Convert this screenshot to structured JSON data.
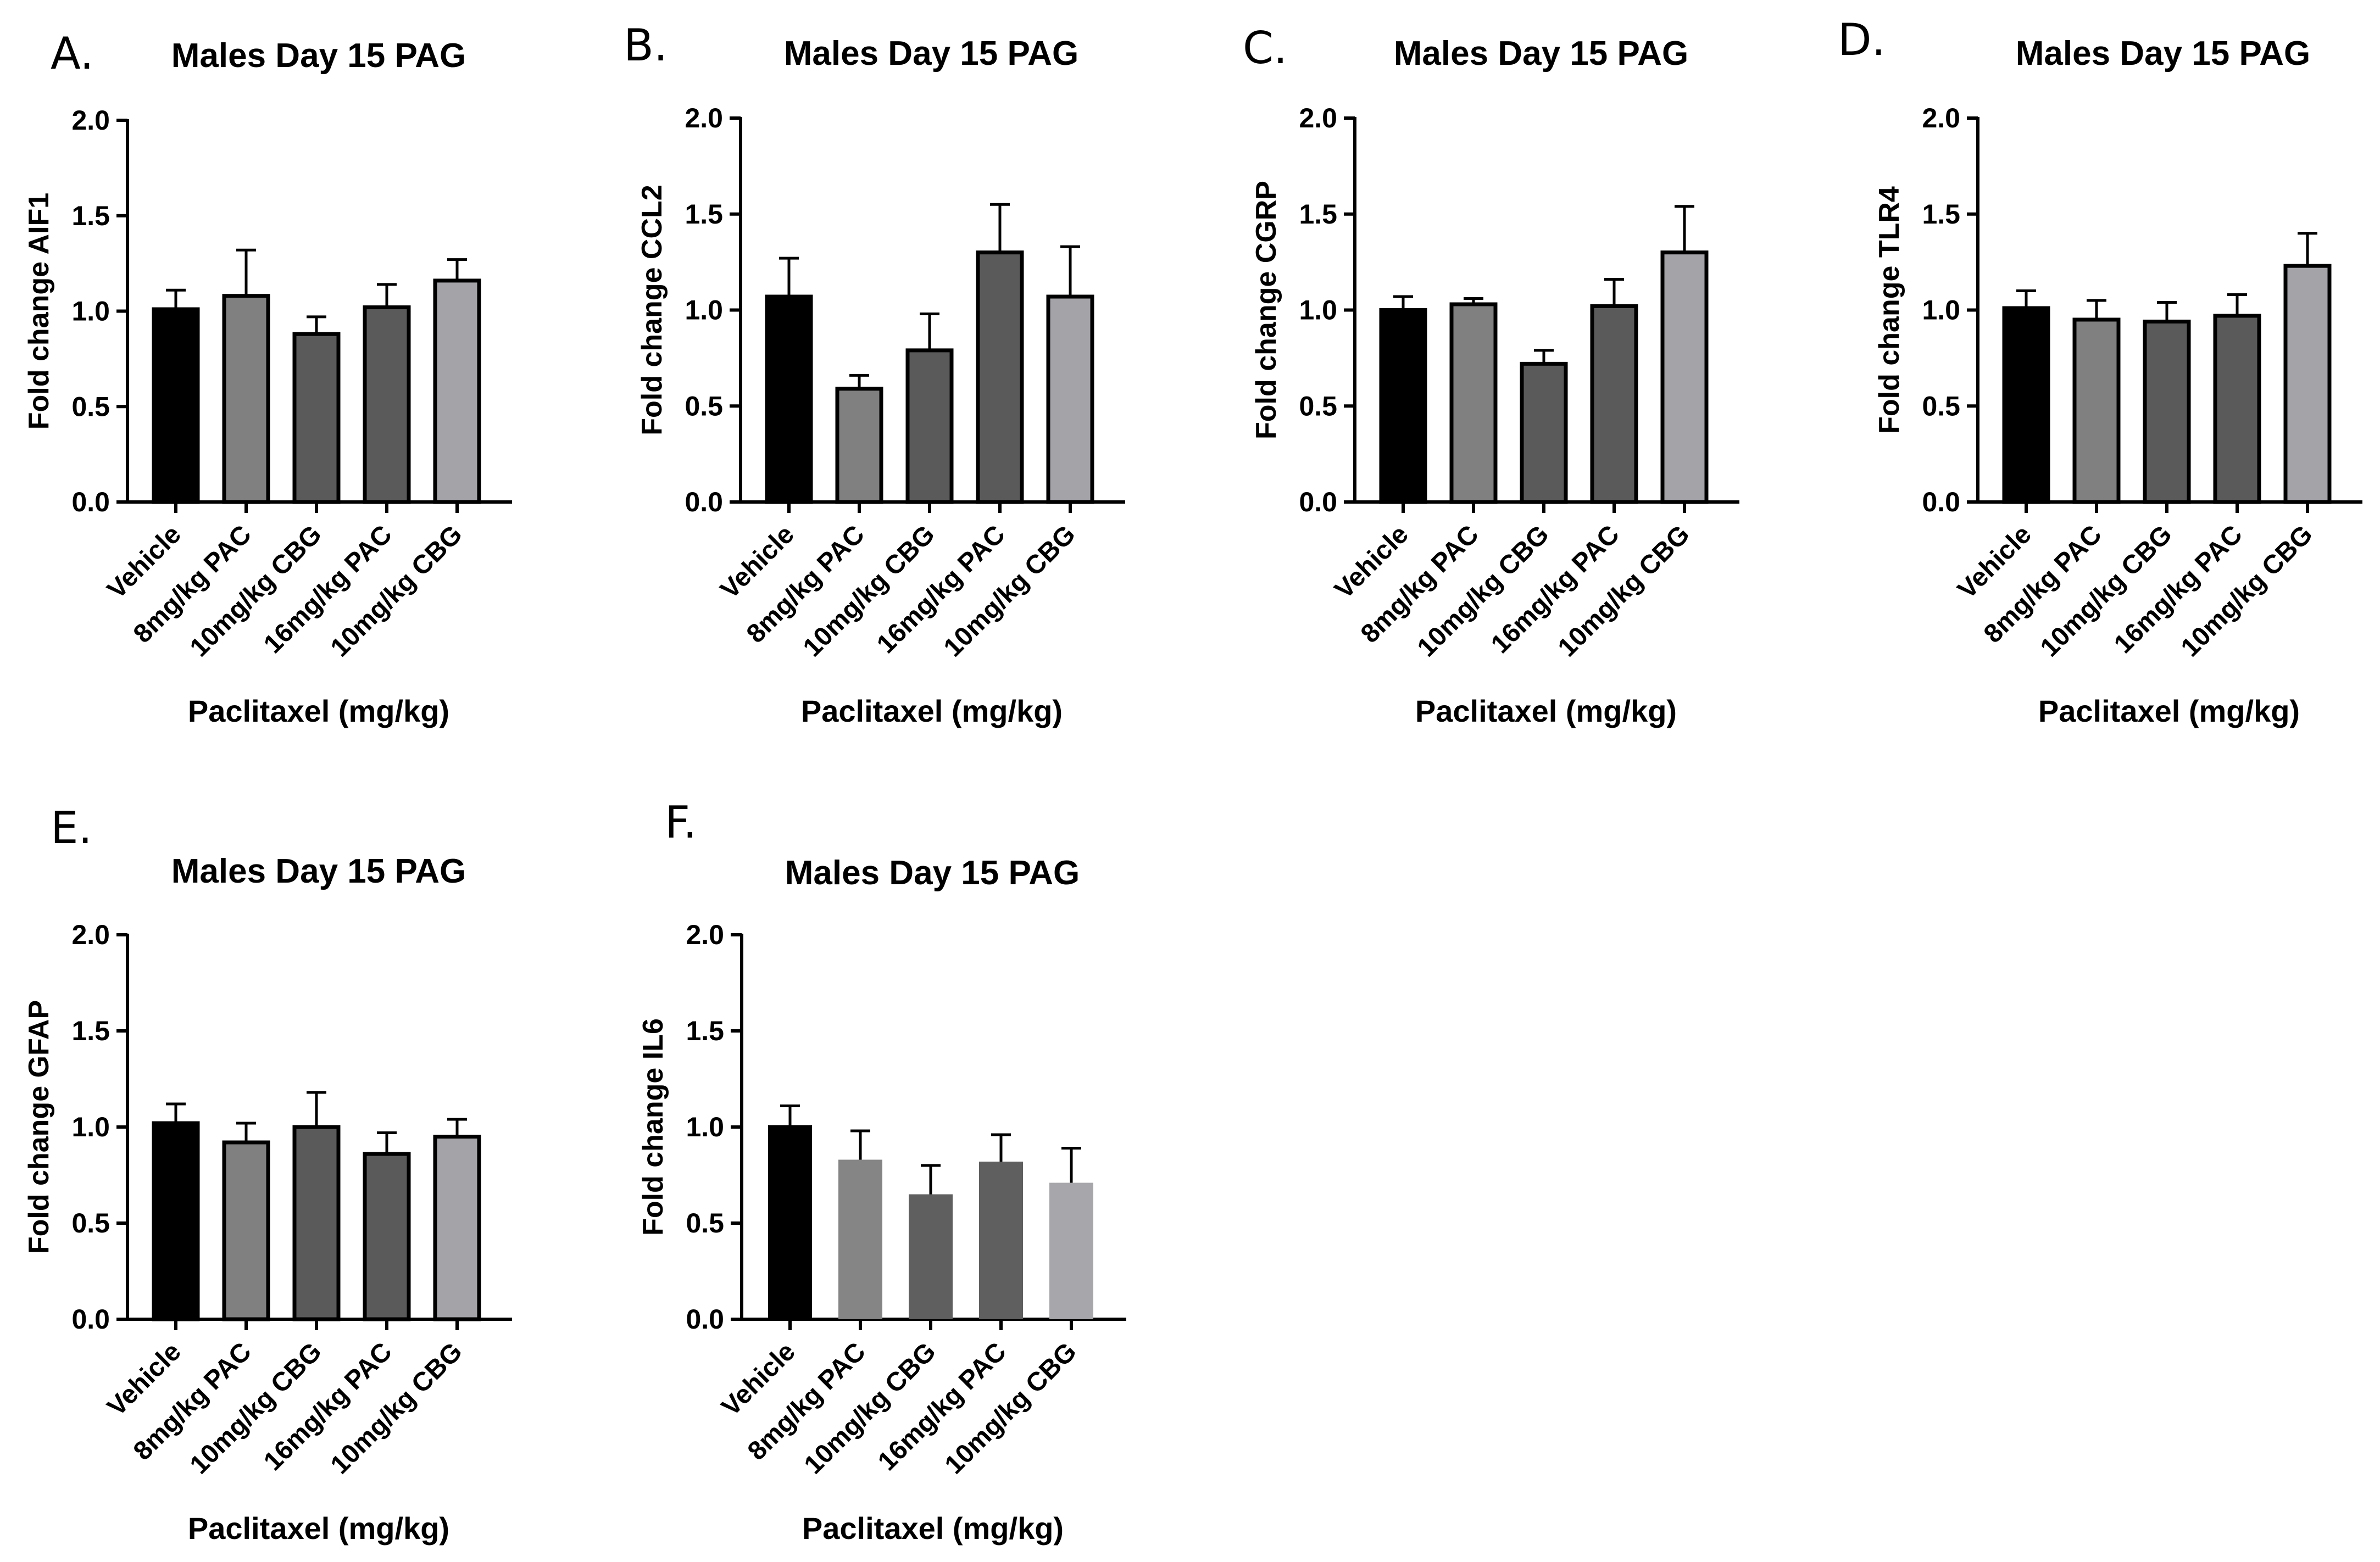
{
  "figure": {
    "panels": [
      {
        "letter": "A."
      },
      {
        "letter": "B."
      },
      {
        "letter": "C."
      },
      {
        "letter": "D."
      },
      {
        "letter": "E."
      },
      {
        "letter": "F."
      }
    ]
  },
  "chart_data": [
    {
      "type": "bar",
      "title": "Males Day 15 PAG",
      "xlabel": "Paclitaxel (mg/kg)",
      "ylabel": "Fold change AIF1",
      "categories": [
        "Vehicle",
        "8mg/kg PAC",
        "10mg/kg CBG",
        "16mg/kg PAC",
        "10mg/kg CBG"
      ],
      "values": [
        1.01,
        1.08,
        0.88,
        1.02,
        1.16
      ],
      "errors": [
        0.1,
        0.24,
        0.09,
        0.12,
        0.11
      ],
      "bar_colors": [
        "#000000",
        "#808080",
        "#5a5a5a",
        "#5a5a5a",
        "#a3a3a8"
      ],
      "bar_outline": true,
      "ylim": [
        0,
        2.0
      ],
      "yticks": [
        "0.0",
        "0.5",
        "1.0",
        "1.5",
        "2.0"
      ],
      "grid": false
    },
    {
      "type": "bar",
      "title": "Males Day 15 PAG",
      "xlabel": "Paclitaxel (mg/kg)",
      "ylabel": "Fold change CCL2",
      "categories": [
        "Vehicle",
        "8mg/kg PAC",
        "10mg/kg CBG",
        "16mg/kg PAC",
        "10mg/kg CBG"
      ],
      "values": [
        1.07,
        0.59,
        0.79,
        1.3,
        1.07
      ],
      "errors": [
        0.2,
        0.07,
        0.19,
        0.25,
        0.26
      ],
      "bar_colors": [
        "#000000",
        "#808080",
        "#5a5a5a",
        "#5a5a5a",
        "#a3a3a8"
      ],
      "bar_outline": true,
      "ylim": [
        0,
        2.0
      ],
      "yticks": [
        "0.0",
        "0.5",
        "1.0",
        "1.5",
        "2.0"
      ],
      "grid": false
    },
    {
      "type": "bar",
      "title": "Males Day 15 PAG",
      "xlabel": "Paclitaxel (mg/kg)",
      "ylabel": "Fold change CGRP",
      "categories": [
        "Vehicle",
        "8mg/kg PAC",
        "10mg/kg CBG",
        "16mg/kg PAC",
        "10mg/kg CBG"
      ],
      "values": [
        1.0,
        1.03,
        0.72,
        1.02,
        1.3
      ],
      "errors": [
        0.07,
        0.03,
        0.07,
        0.14,
        0.24
      ],
      "bar_colors": [
        "#000000",
        "#808080",
        "#5a5a5a",
        "#5a5a5a",
        "#a3a3a8"
      ],
      "bar_outline": true,
      "ylim": [
        0,
        2.0
      ],
      "yticks": [
        "0.0",
        "0.5",
        "1.0",
        "1.5",
        "2.0"
      ],
      "grid": false
    },
    {
      "type": "bar",
      "title": "Males Day 15 PAG",
      "xlabel": "Paclitaxel (mg/kg)",
      "ylabel": "Fold change TLR4",
      "categories": [
        "Vehicle",
        "8mg/kg PAC",
        "10mg/kg CBG",
        "16mg/kg PAC",
        "10mg/kg CBG"
      ],
      "values": [
        1.01,
        0.95,
        0.94,
        0.97,
        1.23
      ],
      "errors": [
        0.09,
        0.1,
        0.1,
        0.11,
        0.17
      ],
      "bar_colors": [
        "#000000",
        "#808080",
        "#5a5a5a",
        "#5a5a5a",
        "#a3a3a8"
      ],
      "bar_outline": true,
      "ylim": [
        0,
        2.0
      ],
      "yticks": [
        "0.0",
        "0.5",
        "1.0",
        "1.5",
        "2.0"
      ],
      "grid": false
    },
    {
      "type": "bar",
      "title": "Males Day 15 PAG",
      "xlabel": "Paclitaxel (mg/kg)",
      "ylabel": "Fold change GFAP",
      "categories": [
        "Vehicle",
        "8mg/kg PAC",
        "10mg/kg CBG",
        "16mg/kg PAC",
        "10mg/kg CBG"
      ],
      "values": [
        1.02,
        0.92,
        1.0,
        0.86,
        0.95
      ],
      "errors": [
        0.1,
        0.1,
        0.18,
        0.11,
        0.09
      ],
      "bar_colors": [
        "#000000",
        "#808080",
        "#5a5a5a",
        "#5a5a5a",
        "#a3a3a8"
      ],
      "bar_outline": true,
      "ylim": [
        0,
        2.0
      ],
      "yticks": [
        "0.0",
        "0.5",
        "1.0",
        "1.5",
        "2.0"
      ],
      "grid": false
    },
    {
      "type": "bar",
      "title": "Males Day 15 PAG",
      "xlabel": "Paclitaxel (mg/kg)",
      "ylabel": "Fold change IL6",
      "categories": [
        "Vehicle",
        "8mg/kg PAC",
        "10mg/kg CBG",
        "16mg/kg PAC",
        "10mg/kg CBG"
      ],
      "values": [
        1.01,
        0.83,
        0.65,
        0.82,
        0.71
      ],
      "errors": [
        0.1,
        0.15,
        0.15,
        0.14,
        0.18
      ],
      "bar_colors": [
        "#000000",
        "#858585",
        "#5f5f5f",
        "#5f5f5f",
        "#a6a6ab"
      ],
      "bar_outline": false,
      "ylim": [
        0,
        2.0
      ],
      "yticks": [
        "0.0",
        "0.5",
        "1.0",
        "1.5",
        "2.0"
      ],
      "grid": false
    }
  ]
}
